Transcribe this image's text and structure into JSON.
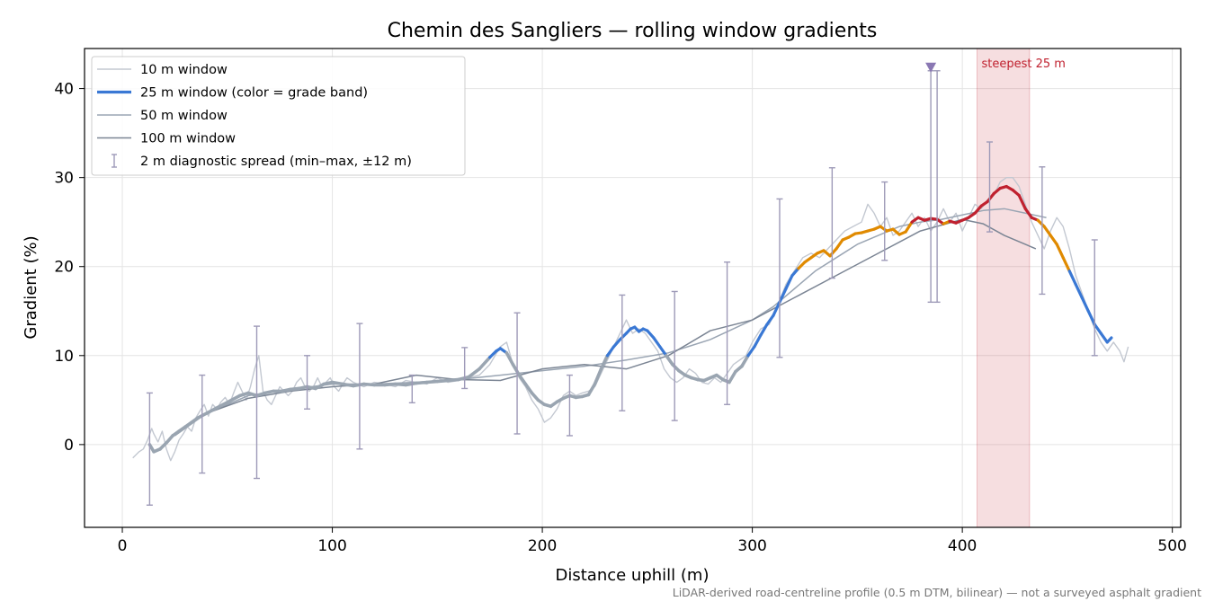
{
  "chart_data": {
    "type": "line",
    "title": "Chemin des Sangliers — rolling window gradients",
    "xlabel": "Distance uphill (m)",
    "ylabel": "Gradient (%)",
    "footnote": "LiDAR-derived road-centreline profile (0.5 m DTM, bilinear) — not a surveyed asphalt gradient",
    "xlim": [
      -18,
      504
    ],
    "ylim": [
      -9.3,
      44.5
    ],
    "xticks": [
      0,
      100,
      200,
      300,
      400,
      500
    ],
    "yticks": [
      0,
      10,
      20,
      30,
      40
    ],
    "grid": true,
    "legend_position": "top-left",
    "grade_band_colors": {
      "0-10": "#9aa5b1",
      "10-20": "#3a78d4",
      "20-25": "#e08a00",
      "25+": "#c0212f"
    },
    "series": [
      {
        "name": "10 m window",
        "color": "#c3c8d1",
        "x": [
          5,
          8,
          10,
          12,
          14,
          15,
          17,
          19,
          21,
          23,
          25,
          27,
          29,
          31,
          33,
          35,
          37,
          39,
          41,
          43,
          45,
          47,
          49,
          51,
          53,
          55,
          57,
          59,
          61,
          63,
          65,
          67,
          69,
          71,
          73,
          75,
          77,
          79,
          81,
          83,
          85,
          87,
          89,
          91,
          93,
          95,
          97,
          99,
          101,
          103,
          105,
          107,
          110,
          115,
          120,
          125,
          130,
          135,
          140,
          145,
          150,
          155,
          160,
          165,
          170,
          175,
          180,
          183,
          186,
          189,
          192,
          195,
          198,
          201,
          204,
          207,
          210,
          213,
          216,
          219,
          222,
          225,
          228,
          231,
          234,
          237,
          240,
          243,
          246,
          249,
          252,
          255,
          258,
          261,
          264,
          267,
          270,
          273,
          276,
          279,
          282,
          285,
          288,
          291,
          294,
          297,
          300,
          304,
          308,
          312,
          316,
          320,
          324,
          328,
          332,
          336,
          340,
          344,
          348,
          352,
          355,
          358,
          361,
          364,
          367,
          370,
          373,
          376,
          379,
          382,
          385,
          388,
          391,
          394,
          397,
          400,
          403,
          406,
          409,
          412,
          415,
          418,
          421,
          424,
          427,
          430,
          433,
          436,
          439,
          442,
          445,
          448,
          451,
          454,
          457,
          460,
          463,
          466,
          469,
          472,
          475,
          477,
          479
        ],
        "y": [
          -1.5,
          -0.8,
          -0.5,
          0.5,
          1.8,
          1.2,
          0.3,
          1.5,
          -0.5,
          -1.8,
          -0.8,
          0.5,
          1.2,
          2.0,
          1.5,
          3.0,
          3.8,
          4.5,
          3.2,
          4.5,
          4.0,
          4.8,
          5.3,
          4.5,
          5.8,
          7.0,
          6.0,
          5.0,
          6.5,
          8.5,
          10.0,
          6.0,
          5.0,
          4.5,
          5.5,
          6.5,
          6.0,
          5.5,
          6.0,
          7.0,
          7.5,
          6.5,
          6.0,
          6.5,
          7.5,
          6.5,
          7.0,
          7.5,
          6.5,
          6.0,
          6.8,
          7.5,
          7.0,
          6.5,
          7.0,
          6.8,
          6.5,
          7.2,
          7.0,
          6.8,
          7.5,
          7.0,
          7.2,
          7.5,
          7.8,
          9.0,
          11.0,
          11.5,
          9.0,
          7.5,
          6.5,
          5.0,
          4.0,
          2.5,
          3.0,
          4.0,
          5.5,
          6.0,
          5.5,
          5.8,
          6.0,
          6.5,
          8.0,
          9.5,
          11.0,
          12.5,
          14.0,
          12.5,
          13.0,
          12.5,
          11.5,
          10.5,
          8.5,
          7.5,
          7.0,
          7.5,
          8.5,
          8.0,
          7.0,
          6.8,
          7.5,
          7.0,
          8.0,
          9.0,
          9.5,
          10.0,
          11.5,
          13.0,
          13.5,
          15.5,
          18.0,
          19.5,
          21.0,
          21.5,
          21.0,
          22.0,
          23.0,
          24.0,
          24.5,
          25.0,
          27.0,
          26.0,
          24.5,
          25.5,
          23.5,
          24.0,
          25.0,
          26.0,
          24.5,
          25.5,
          24.0,
          25.0,
          26.5,
          25.0,
          26.0,
          24.0,
          25.5,
          27.0,
          26.5,
          27.5,
          28.0,
          29.5,
          30.0,
          30.0,
          29.0,
          27.0,
          25.0,
          23.5,
          22.0,
          24.0,
          25.5,
          24.5,
          22.0,
          19.0,
          17.0,
          15.0,
          13.0,
          11.5,
          10.5,
          11.5,
          10.5,
          9.3,
          11.0
        ]
      },
      {
        "name": "25 m window (color = grade band)",
        "color": "#3a78d4",
        "x": [
          13,
          15,
          18,
          21,
          24,
          27,
          30,
          33,
          36,
          40,
          44,
          48,
          52,
          56,
          60,
          64,
          68,
          72,
          76,
          80,
          84,
          88,
          92,
          96,
          100,
          105,
          110,
          115,
          120,
          125,
          130,
          135,
          140,
          145,
          150,
          155,
          160,
          165,
          170,
          175,
          178,
          180,
          183,
          186,
          189,
          192,
          195,
          198,
          201,
          204,
          207,
          210,
          213,
          216,
          219,
          222,
          225,
          228,
          231,
          234,
          237,
          240,
          242,
          244,
          246,
          248,
          250,
          253,
          256,
          259,
          262,
          265,
          268,
          271,
          274,
          277,
          280,
          283,
          286,
          289,
          292,
          295,
          298,
          301,
          304,
          307,
          310,
          313,
          316,
          319,
          322,
          325,
          328,
          331,
          334,
          337,
          340,
          343,
          346,
          349,
          352,
          355,
          358,
          361,
          364,
          367,
          370,
          373,
          376,
          379,
          382,
          385,
          388,
          391,
          394,
          397,
          400,
          403,
          406,
          409,
          412,
          415,
          418,
          421,
          424,
          427,
          430,
          433,
          436,
          439,
          442,
          445,
          448,
          451,
          454,
          457,
          460,
          463,
          466,
          469,
          471
        ],
        "y": [
          0.0,
          -0.8,
          -0.5,
          0.2,
          1.0,
          1.5,
          2.0,
          2.5,
          3.0,
          3.5,
          4.0,
          4.5,
          5.0,
          5.5,
          5.8,
          5.5,
          5.8,
          6.0,
          6.0,
          6.2,
          6.3,
          6.5,
          6.3,
          6.8,
          7.0,
          6.8,
          6.6,
          6.8,
          6.7,
          6.7,
          6.8,
          6.7,
          6.9,
          7.0,
          7.1,
          7.2,
          7.3,
          7.6,
          8.5,
          9.8,
          10.5,
          10.8,
          10.3,
          9.0,
          7.8,
          6.8,
          5.8,
          5.0,
          4.5,
          4.3,
          4.8,
          5.2,
          5.5,
          5.3,
          5.4,
          5.6,
          6.8,
          8.5,
          10.0,
          11.0,
          11.8,
          12.5,
          13.0,
          13.2,
          12.7,
          13.0,
          12.8,
          12.0,
          11.0,
          10.0,
          9.0,
          8.3,
          7.8,
          7.5,
          7.3,
          7.2,
          7.5,
          7.8,
          7.3,
          7.0,
          8.2,
          8.8,
          10.0,
          11.0,
          12.3,
          13.5,
          14.5,
          16.0,
          17.5,
          19.0,
          19.8,
          20.5,
          21.0,
          21.5,
          21.8,
          21.2,
          22.0,
          23.0,
          23.3,
          23.7,
          23.8,
          24.0,
          24.2,
          24.5,
          24.0,
          24.2,
          23.6,
          23.9,
          25.0,
          25.5,
          25.2,
          25.4,
          25.3,
          24.8,
          25.1,
          24.9,
          25.2,
          25.5,
          26.0,
          26.8,
          27.3,
          28.2,
          28.8,
          29.0,
          28.6,
          28.0,
          26.5,
          25.5,
          25.2,
          24.5,
          23.5,
          22.5,
          21.0,
          19.5,
          18.0,
          16.5,
          15.0,
          13.5,
          12.5,
          11.5,
          12.0
        ]
      },
      {
        "name": "50 m window",
        "color": "#9aa5b3",
        "x": [
          25,
          40,
          60,
          80,
          100,
          120,
          140,
          160,
          180,
          200,
          220,
          240,
          260,
          280,
          300,
          310,
          320,
          330,
          340,
          350,
          360,
          370,
          380,
          390,
          400,
          410,
          420,
          430,
          440
        ],
        "y": [
          1.0,
          3.5,
          5.5,
          6.2,
          6.8,
          6.8,
          7.0,
          7.3,
          7.8,
          8.3,
          8.8,
          9.5,
          10.3,
          11.8,
          14.0,
          15.5,
          17.5,
          19.5,
          21.0,
          22.5,
          23.5,
          24.5,
          25.0,
          25.3,
          25.8,
          26.3,
          26.5,
          26.0,
          25.5
        ]
      },
      {
        "name": "100 m window",
        "color": "#7b8594",
        "x": [
          40,
          60,
          80,
          100,
          120,
          140,
          160,
          180,
          200,
          220,
          240,
          260,
          280,
          300,
          320,
          340,
          360,
          380,
          400,
          410,
          420,
          430,
          435
        ],
        "y": [
          3.5,
          5.2,
          6.0,
          6.5,
          6.8,
          7.8,
          7.3,
          7.2,
          8.5,
          9.0,
          8.5,
          10.0,
          12.8,
          14.0,
          16.5,
          19.0,
          21.5,
          24.0,
          25.3,
          24.8,
          23.5,
          22.5,
          22.0
        ]
      },
      {
        "name": "2 m diagnostic spread (min–max, ±12 m)",
        "color": "#9e9ab8",
        "x": [
          13,
          38,
          64,
          88,
          113,
          138,
          163,
          188,
          213,
          238,
          263,
          288,
          313,
          338,
          363,
          385,
          388,
          413,
          438,
          463
        ],
        "low": [
          -6.8,
          -3.2,
          -3.8,
          4.0,
          -0.5,
          4.7,
          6.3,
          1.2,
          1.0,
          3.8,
          2.7,
          4.5,
          9.8,
          18.7,
          20.7,
          16.0,
          16.0,
          23.9,
          16.9,
          10.0
        ],
        "high": [
          5.8,
          7.8,
          13.3,
          10.0,
          13.6,
          7.8,
          10.9,
          14.8,
          7.8,
          16.8,
          17.2,
          20.5,
          27.6,
          31.1,
          29.5,
          42.0,
          42.0,
          34.0,
          31.2,
          23.0
        ]
      }
    ],
    "annotations": {
      "steepest_label": "steepest 25 m",
      "steepest_range": [
        407,
        432
      ],
      "overflow_marker_x": 385,
      "overflow_marker_y": 42.3
    }
  }
}
